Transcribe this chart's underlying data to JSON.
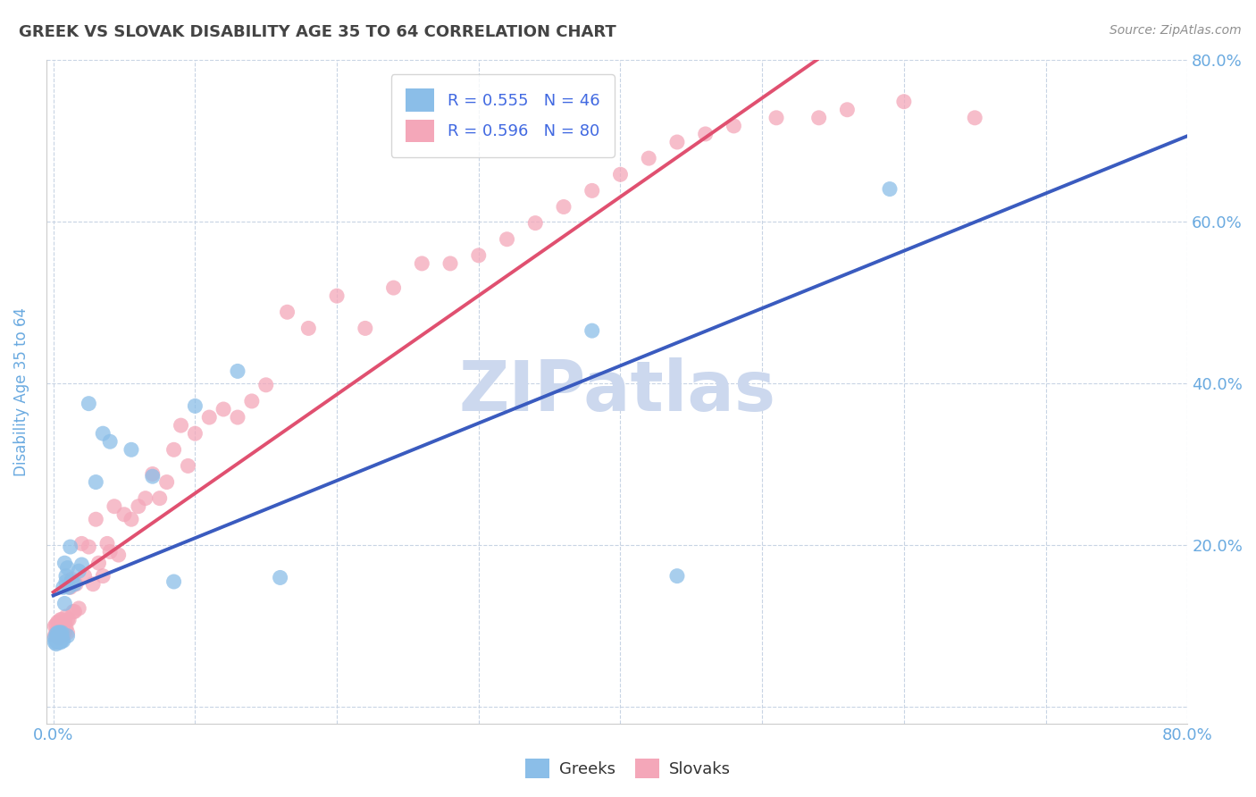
{
  "title": "GREEK VS SLOVAK DISABILITY AGE 35 TO 64 CORRELATION CHART",
  "source": "Source: ZipAtlas.com",
  "ylabel": "Disability Age 35 to 64",
  "xlim": [
    -0.005,
    0.8
  ],
  "ylim": [
    -0.02,
    0.8
  ],
  "greek_color": "#8bbee8",
  "slovak_color": "#f4a7b9",
  "greek_line_color": "#3a5bbf",
  "slovak_line_color": "#e05070",
  "dashed_line_color": "#b0b8c8",
  "greek_R": 0.555,
  "greek_N": 46,
  "slovak_R": 0.596,
  "slovak_N": 80,
  "watermark": "ZIPatlas",
  "watermark_color": "#ccd8ee",
  "background_color": "#ffffff",
  "grid_color": "#c8d4e4",
  "title_color": "#444444",
  "source_color": "#909090",
  "axis_label_color": "#6aaae0",
  "legend_text_color": "#4169e1",
  "greeks_x": [
    0.001,
    0.001,
    0.002,
    0.002,
    0.002,
    0.003,
    0.003,
    0.003,
    0.003,
    0.004,
    0.004,
    0.004,
    0.005,
    0.005,
    0.005,
    0.005,
    0.006,
    0.006,
    0.006,
    0.007,
    0.007,
    0.008,
    0.008,
    0.009,
    0.009,
    0.01,
    0.01,
    0.011,
    0.012,
    0.013,
    0.015,
    0.018,
    0.02,
    0.025,
    0.03,
    0.035,
    0.04,
    0.055,
    0.07,
    0.085,
    0.1,
    0.13,
    0.16,
    0.38,
    0.44,
    0.59
  ],
  "greeks_y": [
    0.08,
    0.085,
    0.078,
    0.082,
    0.09,
    0.08,
    0.082,
    0.088,
    0.092,
    0.082,
    0.088,
    0.092,
    0.08,
    0.082,
    0.088,
    0.092,
    0.082,
    0.088,
    0.092,
    0.082,
    0.148,
    0.128,
    0.178,
    0.155,
    0.162,
    0.172,
    0.088,
    0.148,
    0.198,
    0.155,
    0.152,
    0.168,
    0.176,
    0.375,
    0.278,
    0.338,
    0.328,
    0.318,
    0.285,
    0.155,
    0.372,
    0.415,
    0.16,
    0.465,
    0.162,
    0.64
  ],
  "slovaks_x": [
    0.001,
    0.001,
    0.002,
    0.002,
    0.003,
    0.003,
    0.003,
    0.004,
    0.004,
    0.004,
    0.005,
    0.005,
    0.005,
    0.006,
    0.006,
    0.006,
    0.007,
    0.007,
    0.008,
    0.008,
    0.009,
    0.009,
    0.01,
    0.01,
    0.011,
    0.012,
    0.013,
    0.014,
    0.015,
    0.016,
    0.018,
    0.02,
    0.022,
    0.025,
    0.028,
    0.03,
    0.032,
    0.035,
    0.038,
    0.04,
    0.043,
    0.046,
    0.05,
    0.055,
    0.06,
    0.065,
    0.07,
    0.075,
    0.08,
    0.085,
    0.09,
    0.095,
    0.1,
    0.11,
    0.12,
    0.13,
    0.14,
    0.15,
    0.165,
    0.18,
    0.2,
    0.22,
    0.24,
    0.26,
    0.28,
    0.3,
    0.32,
    0.34,
    0.36,
    0.38,
    0.4,
    0.42,
    0.44,
    0.46,
    0.48,
    0.51,
    0.54,
    0.56,
    0.6,
    0.65
  ],
  "slovaks_y": [
    0.088,
    0.1,
    0.092,
    0.102,
    0.088,
    0.095,
    0.105,
    0.085,
    0.098,
    0.105,
    0.09,
    0.098,
    0.108,
    0.088,
    0.098,
    0.108,
    0.092,
    0.105,
    0.092,
    0.105,
    0.098,
    0.112,
    0.092,
    0.108,
    0.108,
    0.148,
    0.158,
    0.118,
    0.118,
    0.152,
    0.122,
    0.202,
    0.162,
    0.198,
    0.152,
    0.232,
    0.178,
    0.162,
    0.202,
    0.192,
    0.248,
    0.188,
    0.238,
    0.232,
    0.248,
    0.258,
    0.288,
    0.258,
    0.278,
    0.318,
    0.348,
    0.298,
    0.338,
    0.358,
    0.368,
    0.358,
    0.378,
    0.398,
    0.488,
    0.468,
    0.508,
    0.468,
    0.518,
    0.548,
    0.548,
    0.558,
    0.578,
    0.598,
    0.618,
    0.638,
    0.658,
    0.678,
    0.698,
    0.708,
    0.718,
    0.728,
    0.728,
    0.738,
    0.748,
    0.728
  ]
}
